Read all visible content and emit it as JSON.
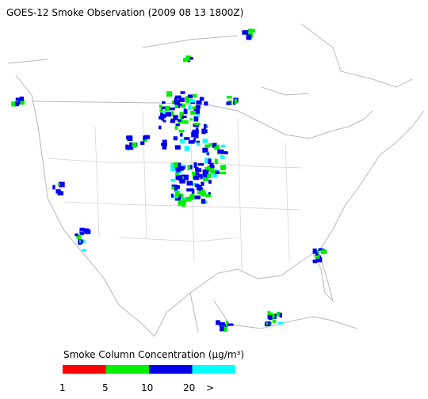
{
  "title": "GOES-12 Smoke Observation (2009 08 13  1800Z)",
  "legend": {
    "title": "Smoke Column Concentration (μg/m³)",
    "colors": [
      "#ff0000",
      "#00ee00",
      "#0000ee",
      "#00ffff"
    ],
    "labels": [
      "1",
      "5",
      "10",
      "20",
      ">"
    ]
  }
}
